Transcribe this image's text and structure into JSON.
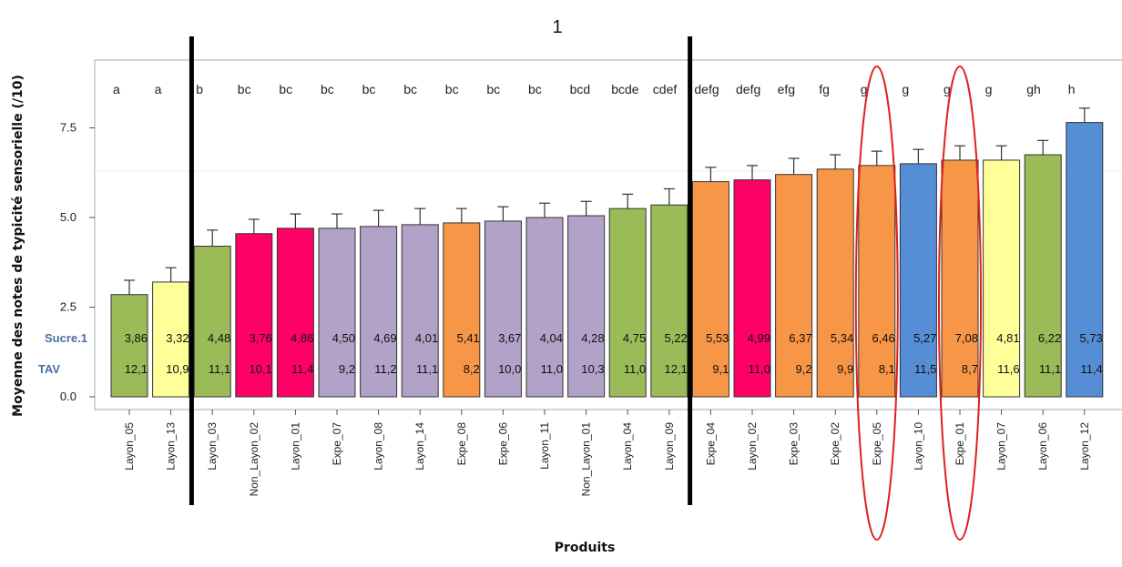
{
  "chart_data": {
    "type": "bar",
    "title": "1",
    "xlabel": "Produits",
    "ylabel": "Moyenne des notes de typicité sensorielle (/10)",
    "ylim": [
      -0.3,
      9.3
    ],
    "yticks": [
      0.0,
      2.5,
      5.0,
      7.5
    ],
    "ytick_labels": [
      "0.0",
      "2.5",
      "5.0",
      "7.5"
    ],
    "row_labels": {
      "sucre": "Sucre.1",
      "tav": "TAV"
    },
    "colors": {
      "green": "#9bbb59",
      "yellow": "#ffff99",
      "pink": "#ff0066",
      "lilac": "#b3a2c7",
      "orange": "#f79646",
      "blue": "#558ed5"
    },
    "categories": [
      "Layon_05",
      "Layon_13",
      "Layon_03",
      "Non_Layon_02",
      "Layon_01",
      "Expe_07",
      "Layon_08",
      "Layon_14",
      "Expe_08",
      "Expe_06",
      "Layon_11",
      "Non_Layon_01",
      "Layon_04",
      "Layon_09",
      "Expe_04",
      "Layon_02",
      "Expe_03",
      "Expe_02",
      "Expe_05",
      "Layon_10",
      "Expe_01",
      "Layon_07",
      "Layon_06",
      "Layon_12"
    ],
    "values": [
      2.85,
      3.2,
      4.2,
      4.55,
      4.7,
      4.7,
      4.75,
      4.8,
      4.85,
      4.9,
      5.0,
      5.05,
      5.25,
      5.35,
      6.0,
      6.05,
      6.2,
      6.35,
      6.45,
      6.5,
      6.6,
      6.6,
      6.75,
      7.65
    ],
    "errors": [
      0.4,
      0.4,
      0.45,
      0.4,
      0.4,
      0.4,
      0.45,
      0.45,
      0.4,
      0.4,
      0.4,
      0.4,
      0.4,
      0.45,
      0.4,
      0.4,
      0.45,
      0.4,
      0.4,
      0.4,
      0.4,
      0.4,
      0.4,
      0.4
    ],
    "bar_colors": [
      "green",
      "yellow",
      "green",
      "pink",
      "pink",
      "lilac",
      "lilac",
      "lilac",
      "orange",
      "lilac",
      "lilac",
      "lilac",
      "green",
      "green",
      "orange",
      "pink",
      "orange",
      "orange",
      "orange",
      "blue",
      "orange",
      "yellow",
      "green",
      "blue"
    ],
    "letters": [
      "a",
      "a",
      "b",
      "bc",
      "bc",
      "bc",
      "bc",
      "bc",
      "bc",
      "bc",
      "bc",
      "bcd",
      "bcde",
      "cdef",
      "defg",
      "defg",
      "efg",
      "fg",
      "g",
      "g",
      "g",
      "g",
      "gh",
      "h"
    ],
    "sucre": [
      "3,86",
      "3,32",
      "4,48",
      "3,76",
      "4,86",
      "4,50",
      "4,69",
      "4,01",
      "5,41",
      "3,67",
      "4,04",
      "4,28",
      "4,75",
      "5,22",
      "5,53",
      "4,99",
      "6,37",
      "5,34",
      "6,46",
      "5,27",
      "7,08",
      "4,81",
      "6,22",
      "5,73"
    ],
    "tav": [
      "12,1",
      "10,9",
      "11,1",
      "10,1",
      "11,4",
      "9,2",
      "11,2",
      "11,1",
      "8,2",
      "10,0",
      "11,0",
      "10,3",
      "11,0",
      "12,1",
      "9,1",
      "11,0",
      "9,2",
      "9,9",
      "8,1",
      "11,5",
      "8,7",
      "11,6",
      "11,1",
      "11,4"
    ],
    "separator_lines_after_index": [
      1,
      13
    ],
    "highlighted": [
      "Expe_05",
      "Expe_01"
    ]
  }
}
